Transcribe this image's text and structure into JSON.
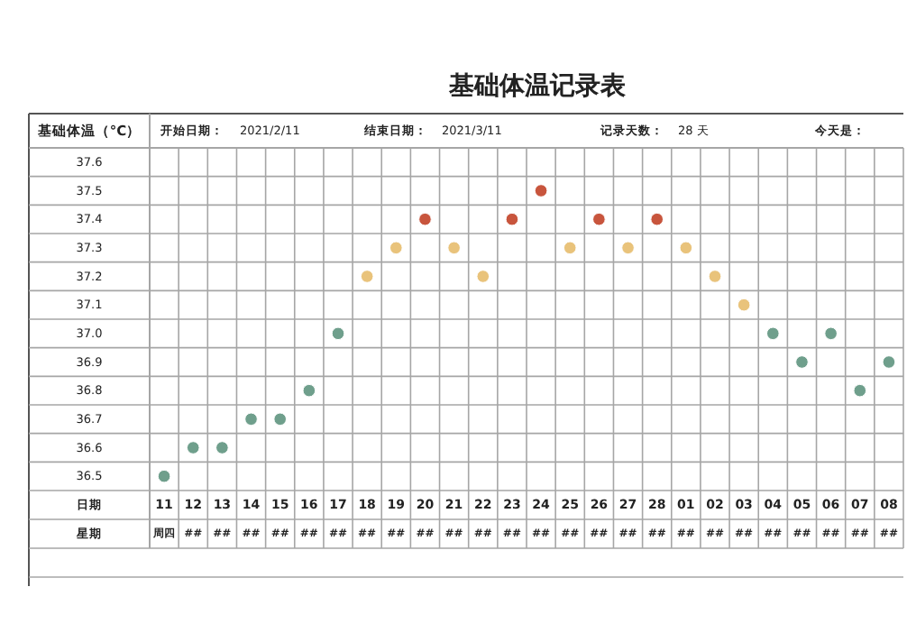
{
  "chart_data": {
    "type": "scatter",
    "title": "基础体温记录表",
    "ylabel": "基础体温（°C）",
    "xlabel": "日期",
    "categories": [
      "11",
      "12",
      "13",
      "14",
      "15",
      "16",
      "17",
      "18",
      "19",
      "20",
      "21",
      "22",
      "23",
      "24",
      "25",
      "26",
      "27",
      "28",
      "01",
      "02",
      "03",
      "04",
      "05",
      "06",
      "07",
      "08"
    ],
    "values": [
      36.5,
      36.6,
      36.6,
      36.7,
      36.7,
      36.8,
      37.0,
      37.2,
      37.3,
      37.4,
      37.3,
      37.2,
      37.4,
      37.5,
      37.3,
      37.4,
      37.3,
      37.4,
      37.3,
      37.2,
      37.1,
      37.0,
      36.9,
      37.0,
      36.8,
      36.9
    ],
    "colors": [
      "#6f9f8c",
      "#6f9f8c",
      "#6f9f8c",
      "#6f9f8c",
      "#6f9f8c",
      "#6f9f8c",
      "#6f9f8c",
      "#e9c37b",
      "#e9c37b",
      "#c8553d",
      "#e9c37b",
      "#e9c37b",
      "#c8553d",
      "#c8553d",
      "#e9c37b",
      "#c8553d",
      "#e9c37b",
      "#c8553d",
      "#e9c37b",
      "#e9c37b",
      "#e9c37b",
      "#6f9f8c",
      "#6f9f8c",
      "#6f9f8c",
      "#6f9f8c",
      "#6f9f8c"
    ],
    "ylim": [
      36.45,
      37.65
    ],
    "yticks": [
      36.5,
      36.6,
      36.7,
      36.8,
      36.9,
      {
        "value": 37,
        "label": "37.0"
      },
      37.1,
      37.2,
      37.3,
      37.4,
      37.5,
      37.6
    ],
    "grid": true,
    "marker": "circle",
    "annotations": [
      "开始日期：",
      "2021/2/11",
      "结束日期：",
      "2021/3/11",
      "记录天数：",
      "28 天",
      "今天是：",
      "星期",
      "周四",
      "##",
      "##",
      "##",
      "##",
      "##",
      "##",
      "##",
      "##",
      "##",
      "##",
      "##",
      "##",
      "##",
      "##",
      "##",
      "##",
      "##",
      "##",
      "##",
      "##",
      "##",
      "##",
      "##",
      "##",
      "##"
    ]
  }
}
